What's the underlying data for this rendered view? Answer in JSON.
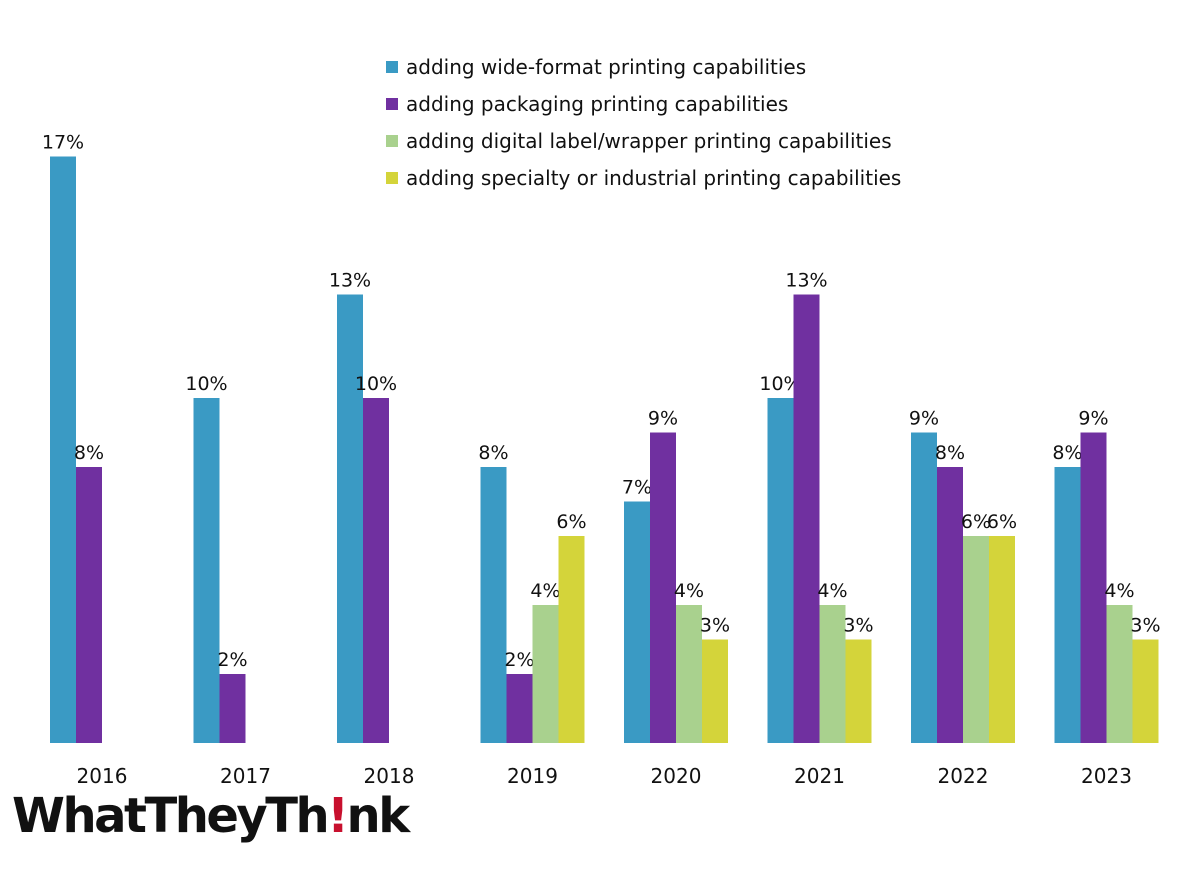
{
  "chart_data": {
    "type": "bar",
    "title": "",
    "xlabel": "",
    "ylabel": "",
    "ylim": [
      0,
      18
    ],
    "grid": false,
    "legend_position": "top-center",
    "categories": [
      "2016",
      "2017",
      "2018",
      "2019",
      "2020",
      "2021",
      "2022",
      "2023"
    ],
    "series": [
      {
        "name": "adding wide-format printing capabilities",
        "color": "#3a9ac4",
        "values": [
          17,
          10,
          13,
          8,
          7,
          10,
          9,
          8
        ],
        "labels": [
          "17%",
          "10%",
          "13%",
          "8%",
          "7%",
          "10%",
          "9%",
          "8%"
        ]
      },
      {
        "name": "adding packaging printing capabilities",
        "color": "#7030a0",
        "values": [
          8,
          2,
          10,
          2,
          9,
          13,
          8,
          9
        ],
        "labels": [
          "8%",
          "2%",
          "10%",
          "2%",
          "9%",
          "13%",
          "8%",
          "9%"
        ]
      },
      {
        "name": "adding digital label/wrapper printing capabilities",
        "color": "#a9d18e",
        "values": [
          null,
          null,
          null,
          4,
          4,
          4,
          6,
          4
        ],
        "labels": [
          null,
          null,
          null,
          "4%",
          "4%",
          "4%",
          "6%",
          "4%"
        ]
      },
      {
        "name": "adding specialty or industrial printing capabilities",
        "color": "#d4d43a",
        "values": [
          null,
          null,
          null,
          6,
          3,
          3,
          6,
          3
        ],
        "labels": [
          null,
          null,
          null,
          "6%",
          "3%",
          "3%",
          "6%",
          "3%"
        ]
      }
    ]
  },
  "logo": {
    "part1": "WhatTheyTh",
    "bang": "!",
    "part2": "nk"
  }
}
